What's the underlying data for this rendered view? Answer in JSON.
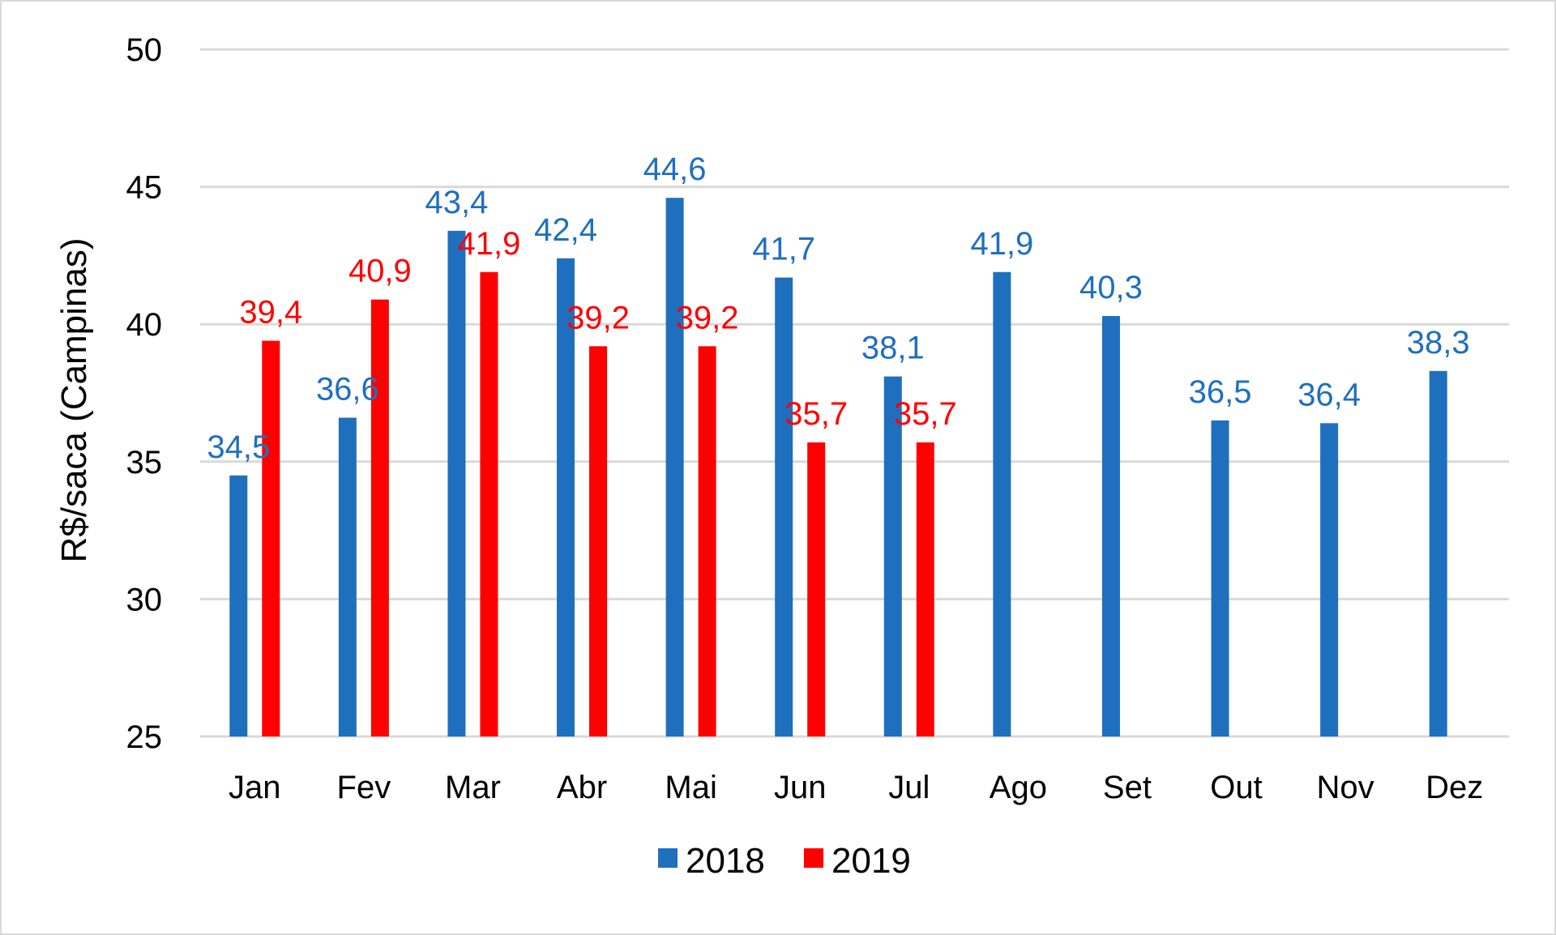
{
  "chart_data": {
    "type": "bar",
    "title": "",
    "xlabel": "",
    "ylabel": "R$/saca (Campinas)",
    "ylim": [
      25,
      50
    ],
    "yticks": [
      25,
      30,
      35,
      40,
      45,
      50
    ],
    "grid": true,
    "legend_position": "bottom",
    "categories": [
      "Jan",
      "Fev",
      "Mar",
      "Abr",
      "Mai",
      "Jun",
      "Jul",
      "Ago",
      "Set",
      "Out",
      "Nov",
      "Dez"
    ],
    "series": [
      {
        "name": "2018",
        "color": "#1f6fbf",
        "values": [
          34.5,
          36.6,
          43.4,
          42.4,
          44.6,
          41.7,
          38.1,
          41.9,
          40.3,
          36.5,
          36.4,
          38.3
        ],
        "labels": [
          "34,5",
          "36,6",
          "43,4",
          "42,4",
          "44,6",
          "41,7",
          "38,1",
          "41,9",
          "40,3",
          "36,5",
          "36,4",
          "38,3"
        ]
      },
      {
        "name": "2019",
        "color": "#ff0000",
        "values": [
          39.4,
          40.9,
          41.9,
          39.2,
          39.2,
          35.7,
          35.7,
          null,
          null,
          null,
          null,
          null
        ],
        "labels": [
          "39,4",
          "40,9",
          "41,9",
          "39,2",
          "39,2",
          "35,7",
          "35,7",
          null,
          null,
          null,
          null,
          null
        ]
      }
    ]
  }
}
